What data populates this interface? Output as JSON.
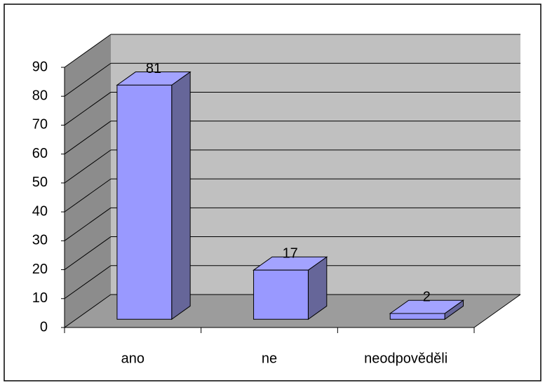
{
  "chart_data": {
    "type": "bar3d",
    "categories": [
      "ano",
      "ne",
      "neodpověděli"
    ],
    "values": [
      81,
      17,
      2
    ],
    "color": "#9999ff",
    "ylim": [
      0,
      90
    ],
    "yticks": [
      0,
      10,
      20,
      30,
      40,
      50,
      60,
      70,
      80,
      90
    ],
    "grid": true
  }
}
